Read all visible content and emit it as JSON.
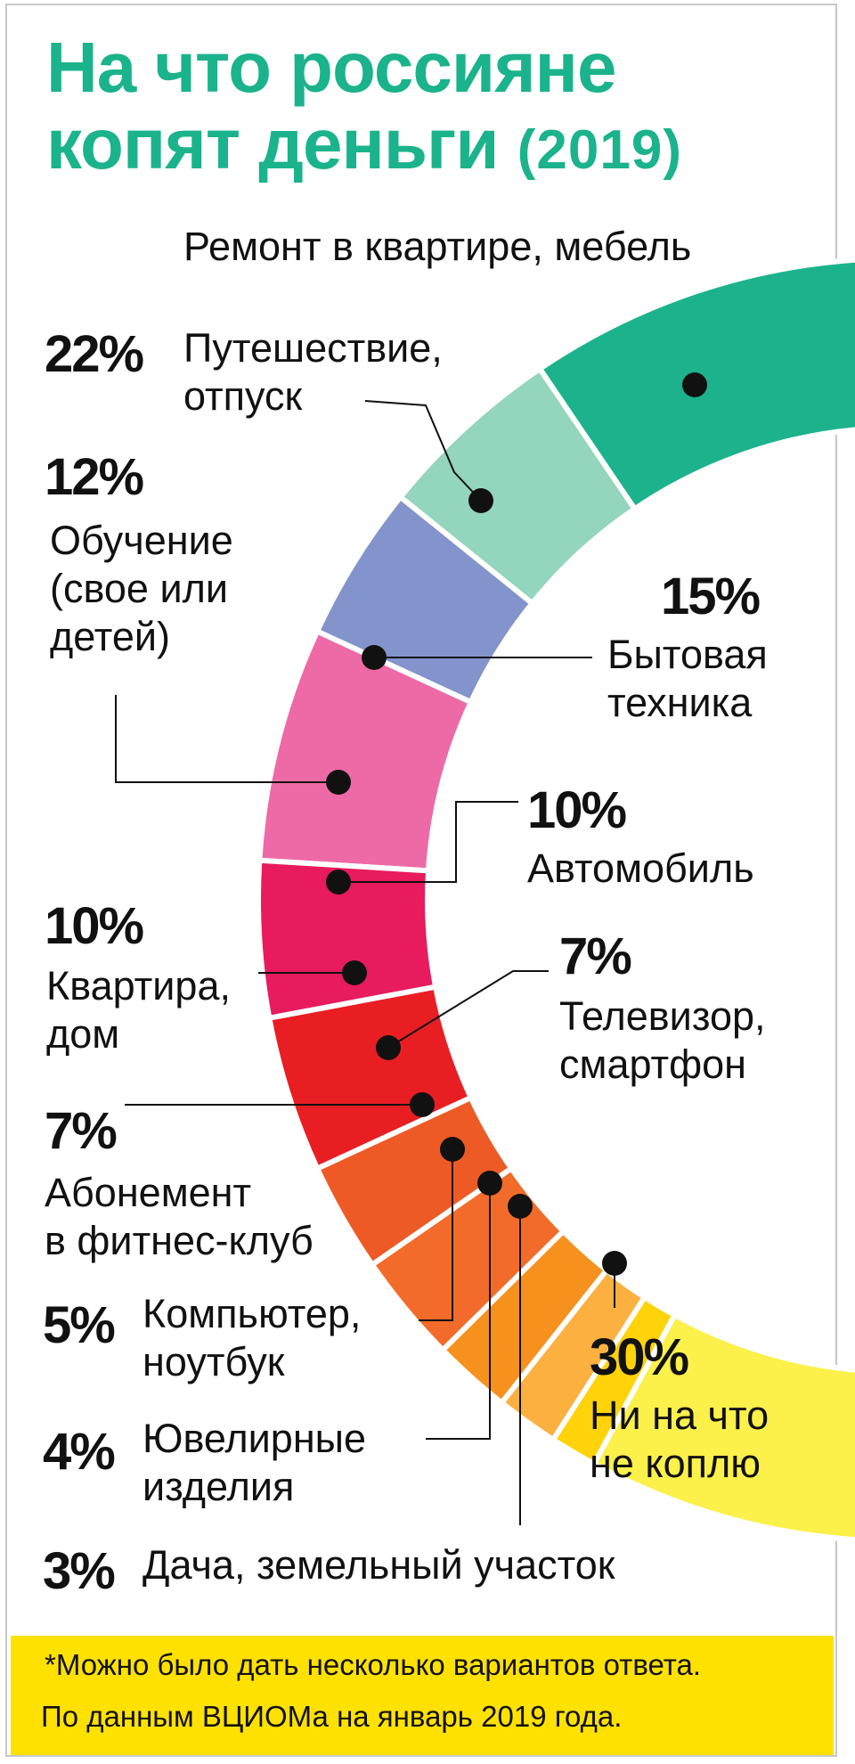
{
  "chart_data": {
    "type": "pie",
    "title_line1": "На что россияне",
    "title_line2": "копят деньги",
    "title_year": "(2019)",
    "slices": [
      {
        "label": "Ремонт в квартире, мебель",
        "value": 22,
        "pct_text": "22%",
        "color": "#1cb38c"
      },
      {
        "label": "Путешествие,\nотпуск",
        "value": 12,
        "pct_text": "12%",
        "color": "#93d5bd"
      },
      {
        "label": "Обучение\n(свое или\nдетей)",
        "value": 10,
        "pct_text": "10%",
        "color": "#8393cc"
      },
      {
        "label": "Бытовая\nтехника",
        "value": 15,
        "pct_text": "15%",
        "color": "#ee6aa6"
      },
      {
        "label": "Автомобиль",
        "value": 10,
        "pct_text": "10%",
        "color": "#e71b5d"
      },
      {
        "label": "Квартира,\nдом",
        "value": 10,
        "pct_text": "10%",
        "color": "#e91e23"
      },
      {
        "label": "Телевизор,\nсмартфон",
        "value": 7,
        "pct_text": "7%",
        "color": "#ee5a25"
      },
      {
        "label": "Абонемент\nв фитнес-клуб",
        "value": 7,
        "pct_text": "7%",
        "color": "#f26b2a"
      },
      {
        "label": "Компьютер,\nноутбук",
        "value": 5,
        "pct_text": "5%",
        "color": "#f6911e"
      },
      {
        "label": "Ювелирные\nизделия",
        "value": 4,
        "pct_text": "4%",
        "color": "#fbb040"
      },
      {
        "label": "Дача, земельный участок",
        "value": 3,
        "pct_text": "3%",
        "color": "#ffd20a"
      },
      {
        "label": "Ни на что\nне коплю",
        "value": 30,
        "pct_text": "30%",
        "color": "#fcf04a"
      }
    ],
    "footnote_line1": "*Можно было дать несколько вариантов ответа.",
    "footnote_line2": "По данным ВЦИОМа на январь 2019 года."
  }
}
